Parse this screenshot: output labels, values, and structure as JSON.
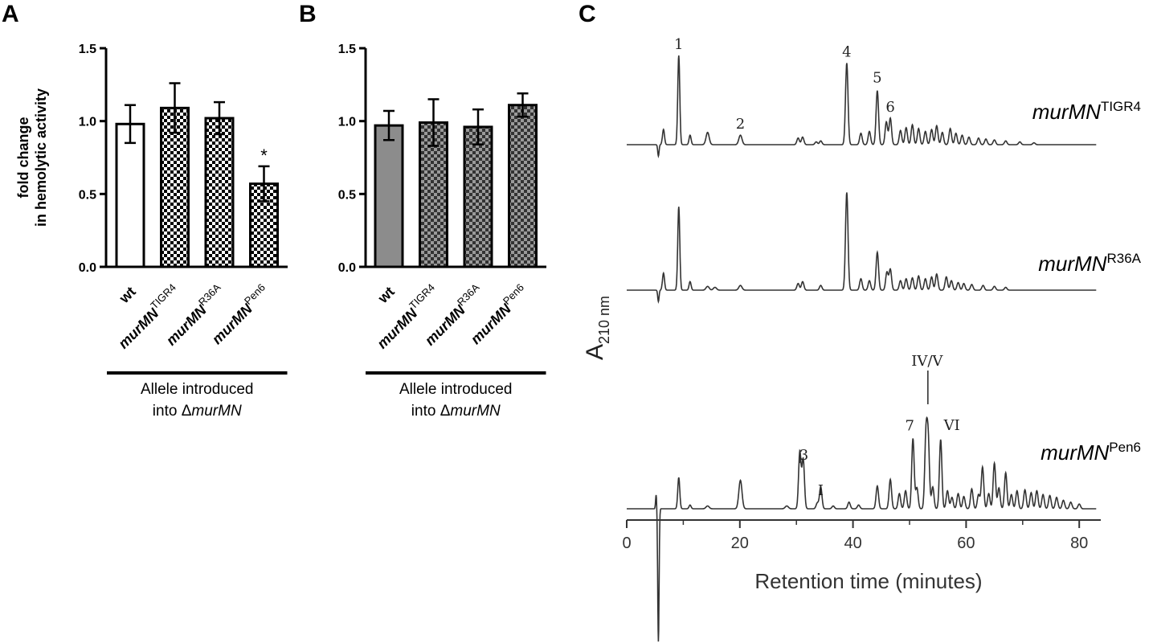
{
  "chart_data": [
    {
      "type": "bar",
      "panel": "A",
      "ylabel_line1": "fold change",
      "ylabel_line2": "in hemolytic activity",
      "ylim": [
        0,
        1.5
      ],
      "yticks": [
        "0.0",
        "0.5",
        "1.0",
        "1.5"
      ],
      "categories": [
        {
          "base": "wt",
          "sup": ""
        },
        {
          "base": "murMN",
          "sup": "TIGR4"
        },
        {
          "base": "murMN",
          "sup": "R36A"
        },
        {
          "base": "murMN",
          "sup": "Pen6"
        }
      ],
      "values": [
        0.98,
        1.09,
        1.02,
        0.57
      ],
      "errors": [
        0.13,
        0.17,
        0.11,
        0.12
      ],
      "fills": [
        "white",
        "checker",
        "checker",
        "checker"
      ],
      "annotations": [
        "",
        "",
        "",
        "*"
      ],
      "group_label_line1": "Allele introduced",
      "group_label_line2_prefix": "into Δ",
      "group_label_line2_italic": "murMN",
      "colors": {
        "bar_edge": "#000000",
        "checker_dark": "#000000",
        "checker_light": "#ffffff"
      }
    },
    {
      "type": "bar",
      "panel": "B",
      "ylim": [
        0,
        1.5
      ],
      "yticks": [
        "0.0",
        "0.5",
        "1.0",
        "1.5"
      ],
      "categories": [
        {
          "base": "wt",
          "sup": ""
        },
        {
          "base": "murMN",
          "sup": "TIGR4"
        },
        {
          "base": "murMN",
          "sup": "R36A"
        },
        {
          "base": "murMN",
          "sup": "Pen6"
        }
      ],
      "values": [
        0.97,
        0.99,
        0.96,
        1.11
      ],
      "errors": [
        0.1,
        0.16,
        0.12,
        0.08
      ],
      "fills": [
        "gray",
        "checker",
        "checker",
        "checker"
      ],
      "annotations": [
        "",
        "",
        "",
        ""
      ],
      "group_label_line1": "Allele introduced",
      "group_label_line2_prefix": "into Δ",
      "group_label_line2_italic": "murMN",
      "colors": {
        "bar_edge": "#000000",
        "gray_fill": "#8c8c8c",
        "checker_dark": "#333333",
        "checker_light": "#9a9a9a"
      }
    },
    {
      "type": "line",
      "panel": "C",
      "xlabel": "Retention time (minutes)",
      "ylabel_main": "A",
      "ylabel_sub": "210 nm",
      "xlim": [
        0,
        83
      ],
      "xticks": [
        "0",
        "20",
        "40",
        "60",
        "80"
      ],
      "series": [
        {
          "name_base": "murMN",
          "name_sup": "TIGR4",
          "peaks": [
            [
              6.5,
              0.16
            ],
            [
              9.2,
              0.94
            ],
            [
              11.2,
              0.1
            ],
            [
              14.3,
              0.13
            ],
            [
              20.1,
              0.1
            ],
            [
              30.3,
              0.07
            ],
            [
              31.1,
              0.08
            ],
            [
              33.5,
              0.03
            ],
            [
              34.3,
              0.04
            ],
            [
              38.9,
              0.86
            ],
            [
              41.4,
              0.12
            ],
            [
              42.9,
              0.14
            ],
            [
              44.3,
              0.57
            ],
            [
              45.9,
              0.24
            ],
            [
              46.6,
              0.28
            ],
            [
              48.4,
              0.15
            ],
            [
              49.4,
              0.18
            ],
            [
              50.5,
              0.21
            ],
            [
              51.6,
              0.17
            ],
            [
              52.8,
              0.14
            ],
            [
              53.9,
              0.16
            ],
            [
              54.8,
              0.2
            ],
            [
              55.8,
              0.13
            ],
            [
              57.2,
              0.17
            ],
            [
              58.2,
              0.12
            ],
            [
              59.3,
              0.1
            ],
            [
              60.5,
              0.08
            ],
            [
              62.2,
              0.07
            ],
            [
              63.5,
              0.06
            ],
            [
              65.0,
              0.05
            ],
            [
              67.0,
              0.04
            ],
            [
              69.5,
              0.03
            ],
            [
              72.0,
              0.02
            ]
          ],
          "labels": [
            {
              "text": "1",
              "x": 9.2
            },
            {
              "text": "2",
              "x": 20.1
            },
            {
              "text": "4",
              "x": 38.9
            },
            {
              "text": "5",
              "x": 44.3
            },
            {
              "text": "6",
              "x": 46.6
            }
          ]
        },
        {
          "name_base": "murMN",
          "name_sup": "R36A",
          "peaks": [
            [
              6.5,
              0.18
            ],
            [
              9.2,
              0.88
            ],
            [
              11.2,
              0.09
            ],
            [
              14.3,
              0.04
            ],
            [
              15.6,
              0.03
            ],
            [
              20.1,
              0.05
            ],
            [
              30.3,
              0.07
            ],
            [
              31.1,
              0.09
            ],
            [
              34.3,
              0.05
            ],
            [
              38.9,
              1.03
            ],
            [
              41.4,
              0.12
            ],
            [
              42.9,
              0.1
            ],
            [
              44.3,
              0.4
            ],
            [
              46.0,
              0.19
            ],
            [
              46.6,
              0.22
            ],
            [
              48.4,
              0.1
            ],
            [
              49.4,
              0.12
            ],
            [
              50.5,
              0.13
            ],
            [
              51.6,
              0.15
            ],
            [
              52.8,
              0.12
            ],
            [
              53.9,
              0.14
            ],
            [
              54.8,
              0.17
            ],
            [
              56.5,
              0.14
            ],
            [
              57.4,
              0.1
            ],
            [
              58.6,
              0.08
            ],
            [
              59.6,
              0.07
            ],
            [
              61.0,
              0.06
            ],
            [
              63.0,
              0.05
            ],
            [
              65.0,
              0.04
            ],
            [
              67.0,
              0.03
            ]
          ],
          "labels": []
        },
        {
          "name_base": "murMN",
          "name_sup": "Pen6",
          "peaks": [
            [
              9.2,
              0.33
            ],
            [
              11.2,
              0.04
            ],
            [
              14.3,
              0.03
            ],
            [
              20.1,
              0.3
            ],
            [
              28.3,
              0.03
            ],
            [
              30.6,
              0.6
            ],
            [
              31.2,
              0.52
            ],
            [
              33.7,
              0.06
            ],
            [
              34.3,
              0.23
            ],
            [
              36.5,
              0.03
            ],
            [
              39.3,
              0.07
            ],
            [
              41.0,
              0.04
            ],
            [
              44.3,
              0.24
            ],
            [
              46.6,
              0.31
            ],
            [
              48.2,
              0.16
            ],
            [
              49.3,
              0.19
            ],
            [
              50.6,
              0.74
            ],
            [
              51.3,
              0.22
            ],
            [
              52.9,
              0.75
            ],
            [
              53.3,
              0.7
            ],
            [
              54.1,
              0.23
            ],
            [
              55.5,
              0.73
            ],
            [
              56.7,
              0.19
            ],
            [
              57.5,
              0.12
            ],
            [
              58.6,
              0.16
            ],
            [
              59.6,
              0.13
            ],
            [
              61.0,
              0.21
            ],
            [
              62.2,
              0.15
            ],
            [
              62.9,
              0.44
            ],
            [
              64.0,
              0.16
            ],
            [
              65.0,
              0.48
            ],
            [
              65.8,
              0.22
            ],
            [
              67.0,
              0.38
            ],
            [
              68.0,
              0.15
            ],
            [
              69.0,
              0.19
            ],
            [
              70.4,
              0.2
            ],
            [
              71.5,
              0.17
            ],
            [
              72.5,
              0.19
            ],
            [
              73.6,
              0.15
            ],
            [
              74.8,
              0.14
            ],
            [
              76.0,
              0.12
            ],
            [
              77.2,
              0.09
            ],
            [
              78.5,
              0.07
            ],
            [
              80.0,
              0.05
            ]
          ],
          "labels": [
            {
              "text": "3",
              "x": 30.6
            },
            {
              "text": "I",
              "x": 34.3
            },
            {
              "text": "7",
              "x": 50.6
            },
            {
              "text": "IV/V",
              "x": 53.1
            },
            {
              "text": "VI",
              "x": 55.5
            }
          ]
        }
      ],
      "colors": {
        "trace": "#333333",
        "axis": "#333333"
      }
    }
  ],
  "panels": {
    "a": "A",
    "b": "B",
    "c": "C"
  }
}
